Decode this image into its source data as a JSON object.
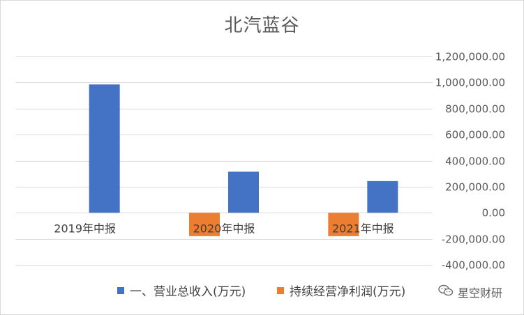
{
  "chart_data": {
    "type": "bar",
    "title": "北汽蓝谷",
    "categories": [
      "2019年中报",
      "2020年中报",
      "2021年中报"
    ],
    "series": [
      {
        "name": "一、营业总收入(万元)",
        "color": "#4472C4",
        "values": [
          985000,
          315000,
          243000
        ]
      },
      {
        "name": "持续经营净利润(万元)",
        "color": "#ED7D31",
        "values": [
          0,
          -180000,
          -180000
        ]
      }
    ],
    "ylim": [
      -400000,
      1200000
    ],
    "yticks": [
      1200000,
      1000000,
      800000,
      600000,
      400000,
      200000,
      0,
      -200000,
      -400000
    ],
    "ytick_labels": [
      "1,200,000.00",
      "1,000,000.00",
      "800,000.00",
      "600,000.00",
      "400,000.00",
      "200,000.00",
      "0.00",
      "-200,000.00",
      "-400,000.00"
    ],
    "y_axis_position": "right",
    "grid": true,
    "legend_position": "bottom"
  },
  "watermark": {
    "text": "星空财研",
    "icon": "wechat-icon"
  }
}
